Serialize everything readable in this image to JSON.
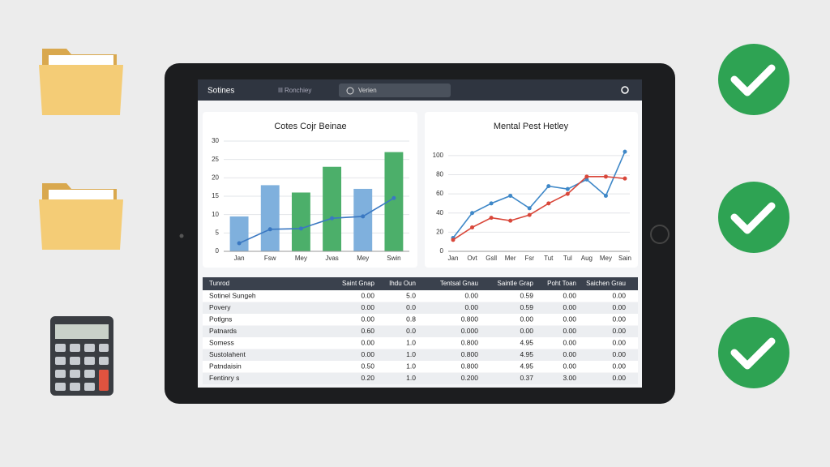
{
  "header": {
    "title": "Sotines",
    "tab": "Ill Ronchiey",
    "search": "Verien"
  },
  "chart_data": [
    {
      "type": "bar",
      "title": "Cotes Cojr Beinae",
      "categories": [
        "Jan",
        "Fsw",
        "Mey",
        "Jvas",
        "Mey",
        "Swin"
      ],
      "ylim": [
        0,
        30
      ],
      "yticks": [
        0,
        5,
        10,
        15,
        20,
        25,
        30
      ],
      "grid": true,
      "series": [
        {
          "type": "bar",
          "values": [
            9.5,
            18,
            16,
            23,
            17,
            27
          ],
          "colors": [
            "#7fb0dd",
            "#7fb0dd",
            "#4caf6a",
            "#4caf6a",
            "#7fb0dd",
            "#4caf6a"
          ]
        },
        {
          "type": "line",
          "color": "#3a78c2",
          "values": [
            2.2,
            6,
            6.2,
            9,
            9.5,
            14.5
          ]
        }
      ]
    },
    {
      "type": "line",
      "title": "Mental Pest Hetley",
      "categories": [
        "Jan",
        "Ovt",
        "Gsll",
        "Mer",
        "Fsr",
        "Tut",
        "Tul",
        "Aug",
        "Mey",
        "Sain"
      ],
      "ylim": [
        0,
        110
      ],
      "yticks": [
        0,
        20,
        40,
        60,
        80,
        100
      ],
      "grid": true,
      "series": [
        {
          "type": "line",
          "color": "#3f88c8",
          "values": [
            14,
            40,
            50,
            58,
            45,
            68,
            65,
            75,
            58,
            104
          ]
        },
        {
          "type": "line",
          "color": "#d9473a",
          "values": [
            12,
            25,
            35,
            32,
            38,
            50,
            60,
            78,
            78,
            76
          ]
        }
      ]
    }
  ],
  "table": {
    "columns": [
      "Tunrod",
      "Saint Gnap",
      "Ihdu Oun",
      "Tentsal Gnau",
      "Saintle Grap",
      "Poht Toan",
      "Saichen Grau"
    ],
    "rows": [
      [
        "Sotinel Sungeh",
        "0.00",
        "5.0",
        "0.00",
        "0.59",
        "0.00",
        "0.00"
      ],
      [
        "Povery",
        "0.00",
        "0.0",
        "0.00",
        "0.59",
        "0.00",
        "0.00"
      ],
      [
        "Potlgns",
        "0.00",
        "0.8",
        "0.800",
        "0.00",
        "0.00",
        "0.00"
      ],
      [
        "Patnards",
        "0.60",
        "0.0",
        "0.000",
        "0.00",
        "0.00",
        "0.00"
      ],
      [
        "Somess",
        "0.00",
        "1.0",
        "0.800",
        "4.95",
        "0.00",
        "0.00"
      ],
      [
        "Sustolahent",
        "0.00",
        "1.0",
        "0.800",
        "4.95",
        "0.00",
        "0.00"
      ],
      [
        "Patndaisin",
        "0.50",
        "1.0",
        "0.800",
        "4.95",
        "0.00",
        "0.00"
      ],
      [
        "Fentinry s",
        "0.20",
        "1.0",
        "0.200",
        "0.37",
        "3.00",
        "0.00"
      ]
    ]
  }
}
